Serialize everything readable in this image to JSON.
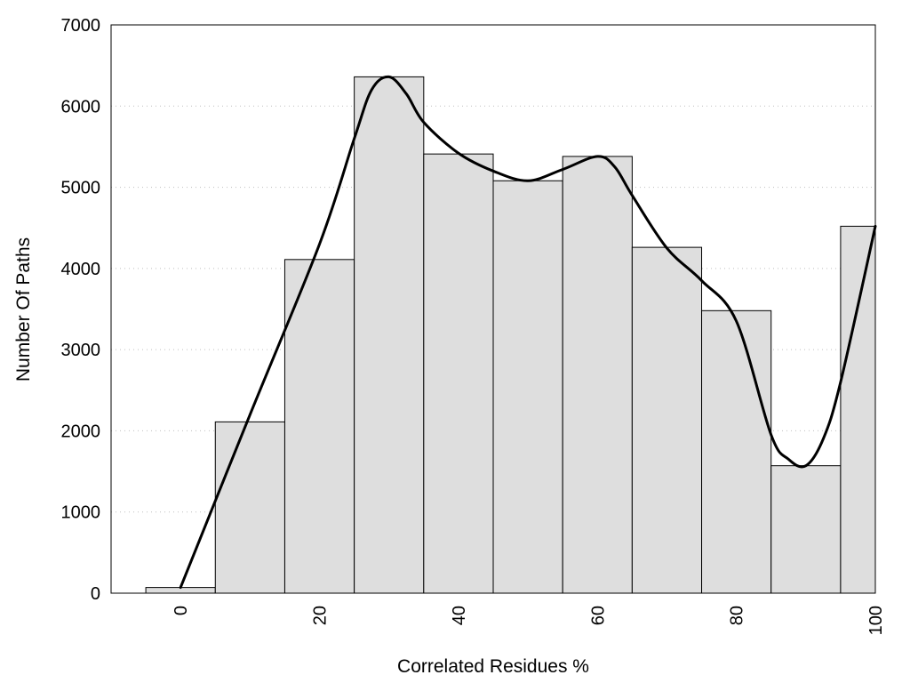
{
  "chart_data": {
    "type": "bar",
    "title": "",
    "xlabel": "Correlated Residues %",
    "ylabel": "Number Of Paths",
    "xlim": [
      -10,
      100
    ],
    "ylim": [
      0,
      7000
    ],
    "x_ticks": [
      0,
      20,
      40,
      60,
      80,
      100
    ],
    "y_ticks": [
      0,
      1000,
      2000,
      3000,
      4000,
      5000,
      6000,
      7000
    ],
    "grid": "horizontal dotted",
    "bar_width": 10,
    "bars": {
      "x": [
        0,
        10,
        20,
        30,
        40,
        50,
        60,
        70,
        80,
        90,
        100
      ],
      "values": [
        70,
        2110,
        4110,
        6360,
        5410,
        5080,
        5380,
        4260,
        3480,
        1570,
        4520
      ]
    },
    "curve": {
      "type": "line",
      "smooth": true,
      "x": [
        0,
        10,
        20,
        25,
        27.5,
        30,
        32.5,
        35,
        40,
        45,
        50,
        55,
        60,
        62.5,
        65,
        70,
        75,
        80,
        85,
        87.5,
        90,
        92.5,
        95,
        100
      ],
      "y": [
        70,
        2200,
        4300,
        5600,
        6200,
        6360,
        6150,
        5800,
        5420,
        5200,
        5080,
        5220,
        5380,
        5250,
        4900,
        4250,
        3850,
        3350,
        1950,
        1650,
        1570,
        1900,
        2600,
        4520
      ]
    },
    "colors": {
      "bar_fill": "#dedede",
      "bar_stroke": "#000000",
      "curve": "#000000",
      "grid": "#bfbfbf"
    }
  }
}
